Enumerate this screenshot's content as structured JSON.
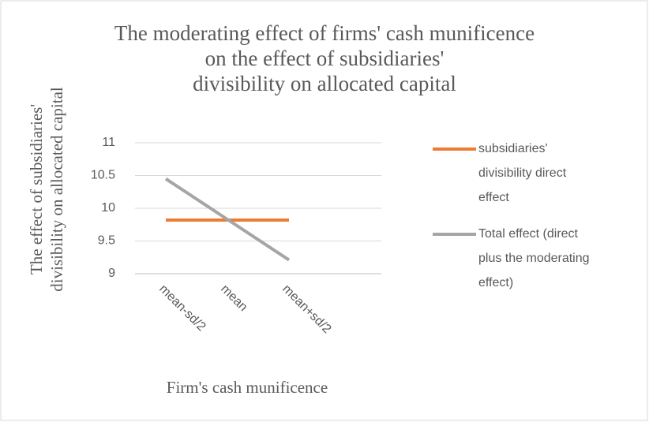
{
  "chart_data": {
    "type": "line",
    "title": [
      "The moderating effect of firms' cash munificence",
      "on the effect of subsidiaries'",
      "divisibility on allocated capital"
    ],
    "y_label": [
      "The effect of subsidiaries'",
      "divisibility on allocated capital"
    ],
    "x_label": "Firm's cash munificence",
    "categories": [
      "mean-sd/2",
      "mean",
      "mean+sd/2",
      null
    ],
    "series": [
      {
        "name": [
          "subsidiaries'",
          "divisibility direct",
          "effect"
        ],
        "color": "#ed7d31",
        "values": [
          9.82,
          9.82,
          9.82,
          null
        ]
      },
      {
        "name": [
          "Total effect (direct",
          "plus the moderating",
          "effect)"
        ],
        "color": "#a5a5a5",
        "values": [
          10.45,
          9.83,
          9.21,
          null
        ]
      }
    ],
    "ylim": [
      9,
      11
    ],
    "yticks": [
      9,
      9.5,
      10,
      10.5,
      11
    ],
    "grid": true
  }
}
